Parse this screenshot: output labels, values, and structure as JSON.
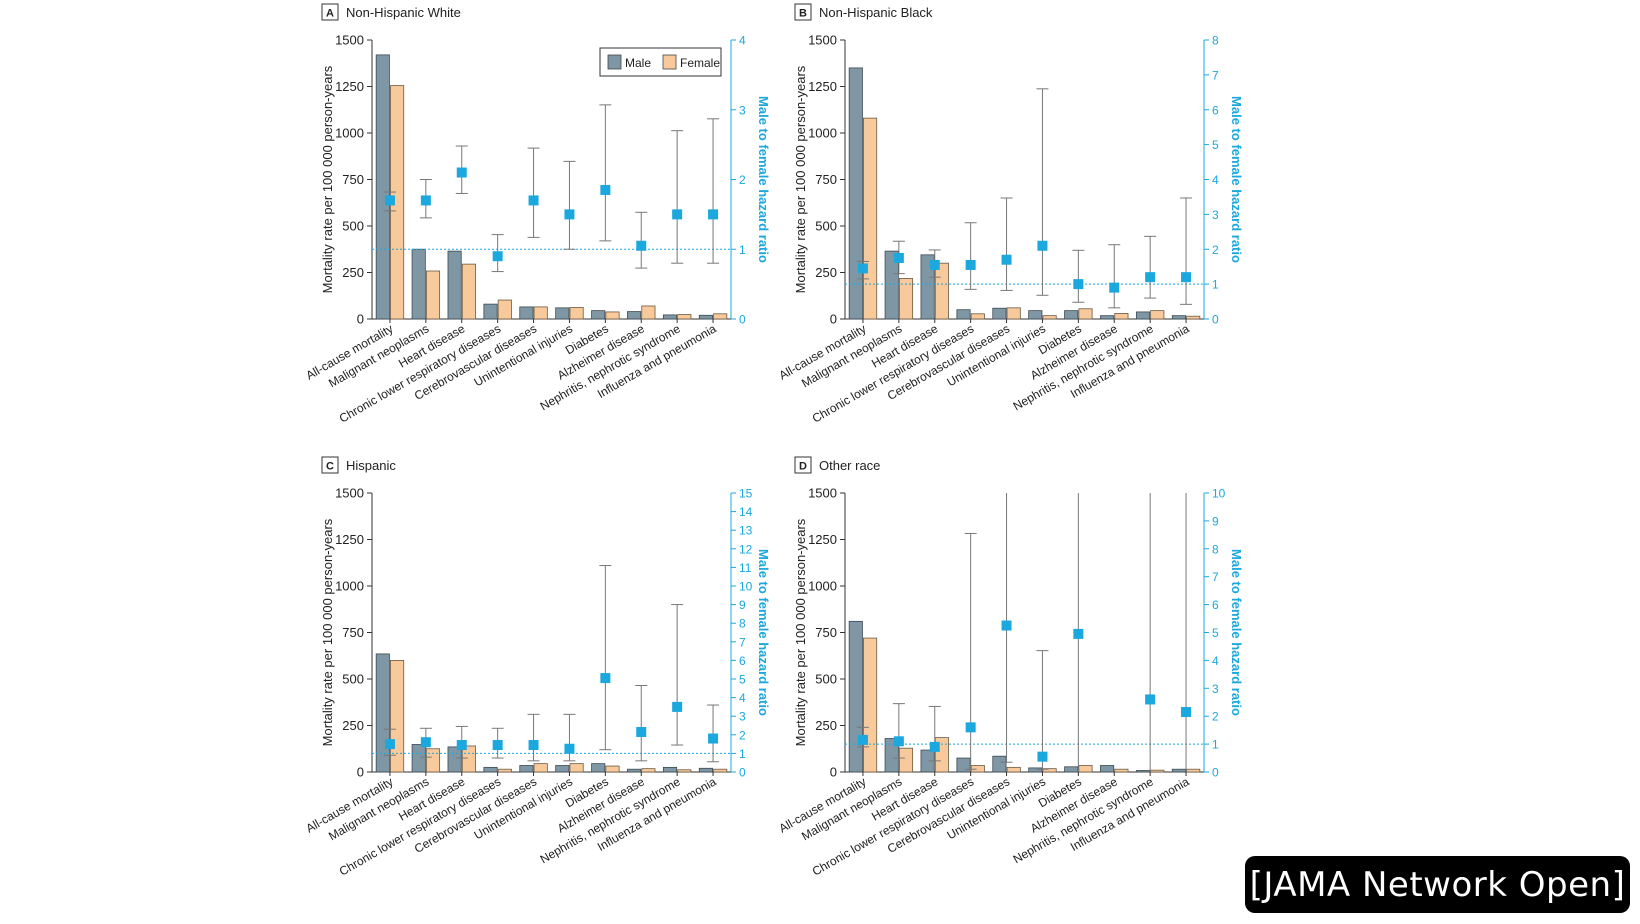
{
  "chart_data": {
    "type": "bar",
    "legend": [
      {
        "name": "Male",
        "color": "#7f97a5"
      },
      {
        "name": "Female",
        "color": "#f8c99a"
      }
    ],
    "colors": {
      "male": "#7f97a5",
      "female": "#f8c99a",
      "hr_marker": "#1aa8df",
      "reference_line": "#1aa8df"
    },
    "categories": [
      "All-cause mortality",
      "Malignant neoplasms",
      "Heart disease",
      "Chronic lower respiratory diseases",
      "Cerebrovascular diseases",
      "Unintentional injuries",
      "Diabetes",
      "Alzheimer disease",
      "Nephritis, nephrotic syndrome",
      "Influenza and pneumonia"
    ],
    "ylabel": "Mortality rate per 100 000 person-years",
    "y2label": "Male to female hazard ratio",
    "ylim": [
      0,
      1500
    ],
    "yticks": [
      "0",
      "250",
      "500",
      "750",
      "1000",
      "1250",
      "1500"
    ],
    "panels": [
      {
        "letter": "A",
        "title": "Non-Hispanic White",
        "show_legend": true,
        "y2lim": [
          0,
          4
        ],
        "y2ticks": [
          "0",
          "1",
          "2",
          "3",
          "4"
        ],
        "male": [
          1420,
          375,
          365,
          80,
          65,
          60,
          45,
          40,
          22,
          20
        ],
        "female": [
          1255,
          258,
          295,
          102,
          65,
          62,
          38,
          70,
          24,
          28
        ],
        "hr": [
          1.7,
          1.7,
          2.1,
          0.9,
          1.7,
          1.5,
          1.85,
          1.05,
          1.5,
          1.5
        ],
        "hr_low": [
          1.55,
          1.45,
          1.8,
          0.68,
          1.17,
          1.0,
          1.12,
          0.73,
          0.8,
          0.8
        ],
        "hr_high": [
          1.82,
          2.0,
          2.48,
          1.21,
          2.45,
          2.26,
          3.07,
          1.53,
          2.7,
          2.87
        ]
      },
      {
        "letter": "B",
        "title": "Non-Hispanic Black",
        "show_legend": false,
        "y2lim": [
          0,
          8
        ],
        "y2ticks": [
          "0",
          "1",
          "2",
          "3",
          "4",
          "5",
          "6",
          "7",
          "8"
        ],
        "male": [
          1350,
          365,
          345,
          50,
          58,
          45,
          45,
          18,
          38,
          18
        ],
        "female": [
          1080,
          218,
          300,
          28,
          60,
          18,
          55,
          30,
          45,
          15
        ],
        "hr": [
          1.45,
          1.75,
          1.55,
          1.55,
          1.7,
          2.1,
          1.0,
          0.9,
          1.2,
          1.2
        ],
        "hr_low": [
          1.15,
          1.3,
          1.2,
          0.85,
          0.82,
          0.68,
          0.48,
          0.32,
          0.6,
          0.42
        ],
        "hr_high": [
          1.65,
          2.23,
          1.98,
          2.76,
          3.47,
          6.6,
          1.97,
          2.13,
          2.37,
          3.47
        ]
      },
      {
        "letter": "C",
        "title": "Hispanic",
        "show_legend": false,
        "y2lim": [
          0,
          15
        ],
        "y2ticks": [
          "0",
          "1",
          "2",
          "3",
          "4",
          "5",
          "6",
          "7",
          "8",
          "9",
          "10",
          "11",
          "12",
          "13",
          "14",
          "15"
        ],
        "male": [
          635,
          148,
          135,
          25,
          35,
          35,
          45,
          15,
          25,
          20
        ],
        "female": [
          600,
          125,
          140,
          15,
          45,
          45,
          32,
          18,
          12,
          15
        ],
        "hr": [
          1.5,
          1.6,
          1.45,
          1.45,
          1.45,
          1.25,
          5.05,
          2.15,
          3.5,
          1.8
        ],
        "hr_low": [
          0.9,
          0.8,
          0.75,
          0.75,
          0.6,
          0.6,
          1.2,
          0.6,
          1.45,
          0.55
        ],
        "hr_high": [
          2.3,
          2.35,
          2.45,
          2.35,
          3.1,
          3.1,
          11.1,
          4.65,
          9.0,
          3.6
        ]
      },
      {
        "letter": "D",
        "title": "Other race",
        "show_legend": false,
        "y2lim": [
          0,
          10
        ],
        "y2ticks": [
          "0",
          "1",
          "2",
          "3",
          "4",
          "5",
          "6",
          "7",
          "8",
          "9",
          "10"
        ],
        "male": [
          810,
          180,
          118,
          75,
          85,
          22,
          28,
          35,
          8,
          15
        ],
        "female": [
          720,
          128,
          185,
          35,
          25,
          18,
          35,
          15,
          10,
          15
        ],
        "hr": [
          1.15,
          1.1,
          0.9,
          1.6,
          5.25,
          0.55,
          4.95,
          0,
          2.6,
          2.15
        ],
        "hr_low": [
          0.9,
          0.5,
          0.4,
          0.1,
          0.35,
          0.1,
          0,
          0,
          0,
          0
        ],
        "hr_high": [
          1.6,
          2.45,
          2.35,
          8.55,
          10,
          4.35,
          10,
          0,
          10,
          10
        ]
      }
    ]
  },
  "watermark": "[JAMA Network Open]"
}
